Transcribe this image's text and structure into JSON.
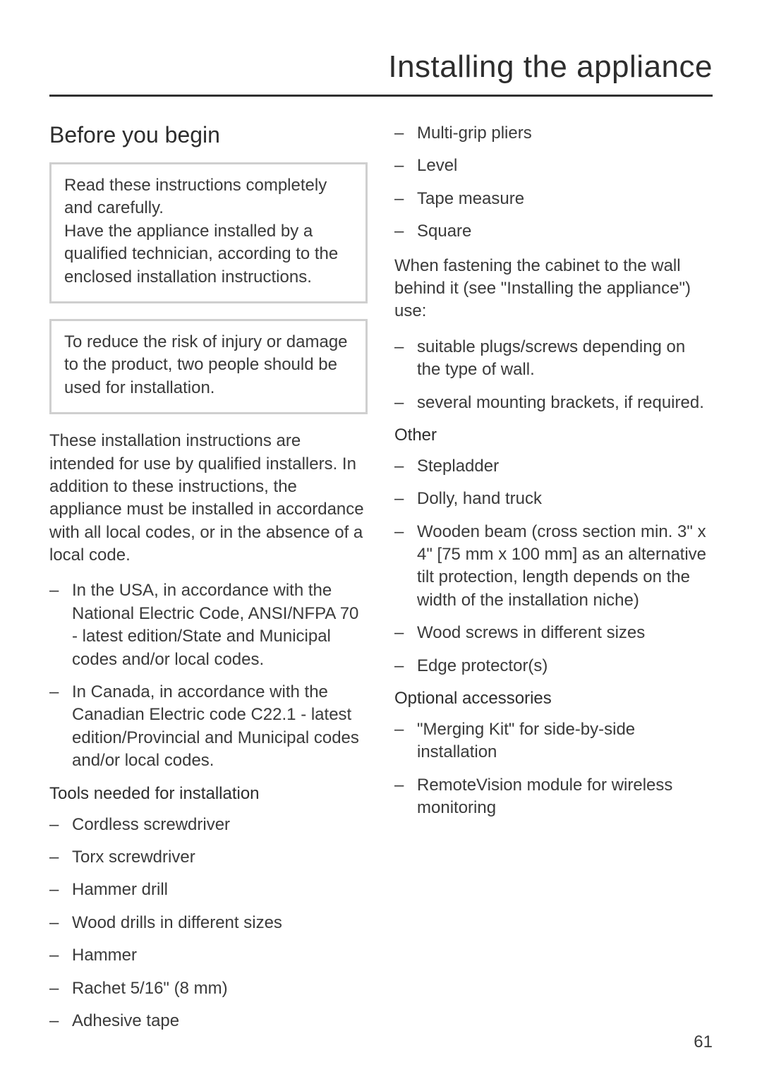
{
  "page": {
    "number": "61",
    "chapter_title": "Installing the appliance",
    "text_color": "#3a3a3a",
    "heading_color": "#2d2d2d",
    "rule_color": "#303030",
    "callout_border": "#cfcfcf",
    "background": "#ffffff",
    "body_fontsize": 24,
    "chapter_fontsize": 44,
    "section_fontsize": 32
  },
  "left": {
    "heading": "Before you begin",
    "callout1": "Read these instructions completely and carefully.\nHave the appliance installed by a qualified technician, according to the enclosed installation instructions.",
    "callout2": "To reduce the risk of injury or damage to the product, two people should be used for installation.",
    "para1": "These installation instructions are intended for use by qualified installers. In addition to these instructions, the appliance must be installed in accordance with all local codes, or in the absence of a local code.",
    "compliance": [
      "In the USA, in accordance with the National Electric Code, ANSI/NFPA 70 - latest edition/State and Municipal codes and/or local codes.",
      "In Canada, in accordance with the Canadian Electric code C22.1 - latest edition/Provincial and Municipal codes and/or local codes."
    ],
    "tools_heading": "Tools needed for installation",
    "tools": [
      "Cordless screwdriver",
      "Torx screwdriver",
      "Hammer drill",
      "Wood drills in different sizes",
      "Hammer",
      "Rachet 5/16\" (8 mm)",
      "Adhesive tape"
    ]
  },
  "right": {
    "tools_cont": [
      "Multi-grip pliers",
      "Level",
      "Tape measure",
      "Square"
    ],
    "para1": "When fastening the cabinet to the wall behind it (see \"Installing the appliance\") use:",
    "fastening": [
      "suitable plugs/screws depending on the type of wall.",
      "several mounting brackets, if required."
    ],
    "other_heading": "Other",
    "other": [
      "Stepladder",
      "Dolly, hand truck",
      "Wooden beam (cross section min. 3\" x 4\" [75 mm x 100 mm] as an alternative tilt protection, length depends on the width of the installation niche)",
      "Wood screws in different sizes",
      "Edge protector(s)"
    ],
    "optional_heading": "Optional accessories",
    "optional": [
      "\"Merging Kit\" for side-by-side installation",
      "RemoteVision module for wireless monitoring"
    ]
  }
}
